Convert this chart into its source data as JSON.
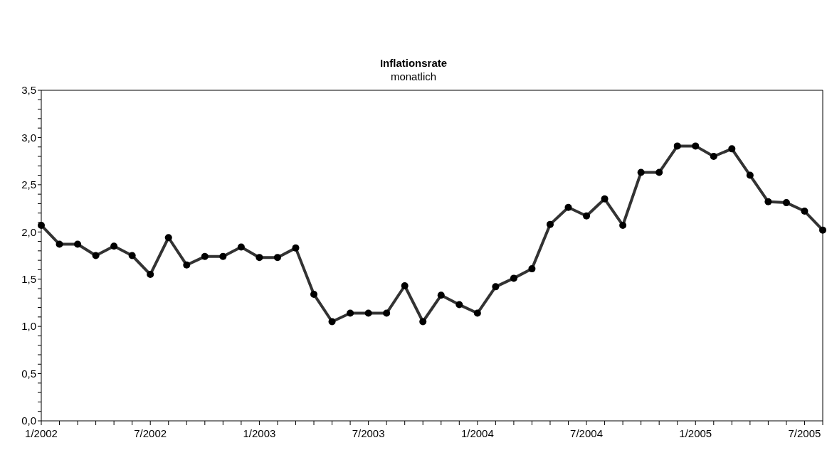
{
  "chart_data": {
    "type": "line",
    "title": "Inflationsrate",
    "subtitle": "monatlich",
    "categories": [
      "1/2002",
      null,
      null,
      null,
      null,
      null,
      "7/2002",
      null,
      null,
      null,
      null,
      null,
      "1/2003",
      null,
      null,
      null,
      null,
      null,
      "7/2003",
      null,
      null,
      null,
      null,
      null,
      "1/2004",
      null,
      null,
      null,
      null,
      null,
      "7/2004",
      null,
      null,
      null,
      null,
      null,
      "1/2005",
      null,
      null,
      null,
      null,
      null,
      "7/2005",
      null
    ],
    "series": [
      {
        "color": "#333333",
        "values": [
          2.07,
          1.87,
          1.87,
          1.75,
          1.85,
          1.75,
          1.55,
          1.94,
          1.65,
          1.74,
          1.74,
          1.84,
          1.73,
          1.73,
          1.83,
          1.34,
          1.05,
          1.14,
          1.14,
          1.14,
          1.43,
          1.05,
          1.33,
          1.23,
          1.14,
          1.42,
          1.51,
          1.61,
          2.08,
          2.26,
          2.17,
          2.35,
          2.07,
          2.63,
          2.63,
          2.91,
          2.91,
          2.8,
          2.88,
          2.6,
          2.32,
          2.31,
          2.22,
          2.02
        ]
      }
    ],
    "ylim": [
      0,
      3.5
    ],
    "yticks": [
      {
        "value": 0,
        "label": "0,0"
      },
      {
        "value": 0.1,
        "label": null
      },
      {
        "value": 0.2,
        "label": null
      },
      {
        "value": 0.3,
        "label": null
      },
      {
        "value": 0.4,
        "label": null
      },
      {
        "value": 0.5,
        "label": "0,5"
      },
      {
        "value": 0.6,
        "label": null
      },
      {
        "value": 0.7,
        "label": null
      },
      {
        "value": 0.8,
        "label": null
      },
      {
        "value": 0.9,
        "label": null
      },
      {
        "value": 1,
        "label": "1,0"
      },
      {
        "value": 1.1,
        "label": null
      },
      {
        "value": 1.2,
        "label": null
      },
      {
        "value": 1.3,
        "label": null
      },
      {
        "value": 1.4,
        "label": null
      },
      {
        "value": 1.5,
        "label": "1,5"
      },
      {
        "value": 1.6,
        "label": null
      },
      {
        "value": 1.7,
        "label": null
      },
      {
        "value": 1.8,
        "label": null
      },
      {
        "value": 1.9,
        "label": null
      },
      {
        "value": 2,
        "label": "2,0"
      },
      {
        "value": 2.1,
        "label": null
      },
      {
        "value": 2.2,
        "label": null
      },
      {
        "value": 2.3,
        "label": null
      },
      {
        "value": 2.4,
        "label": null
      },
      {
        "value": 2.5,
        "label": "2,5"
      },
      {
        "value": 2.6,
        "label": null
      },
      {
        "value": 2.7,
        "label": null
      },
      {
        "value": 2.8,
        "label": null
      },
      {
        "value": 2.9,
        "label": null
      },
      {
        "value": 3,
        "label": "3,0"
      },
      {
        "value": 3.1,
        "label": null
      },
      {
        "value": 3.2,
        "label": null
      },
      {
        "value": 3.3,
        "label": null
      },
      {
        "value": 3.4,
        "label": null
      },
      {
        "value": 3.5,
        "label": "3,5"
      }
    ],
    "grid": false,
    "legend": false,
    "marker": "circle",
    "line_style": "solid"
  }
}
